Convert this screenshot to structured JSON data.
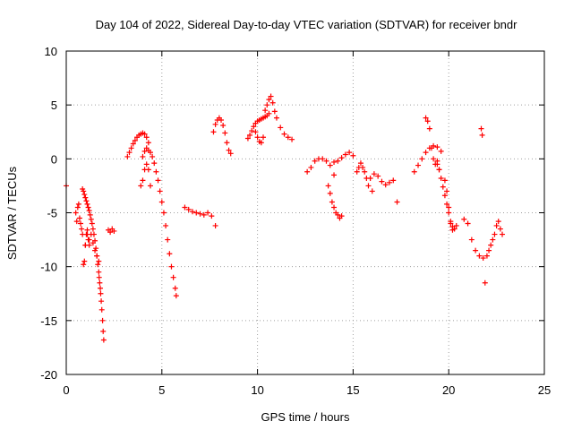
{
  "chart_data": {
    "type": "scatter",
    "title": "Day 104 of 2022, Sidereal Day-to-day VTEC variation (SDTVAR) for receiver bndr",
    "xlabel": "GPS time / hours",
    "ylabel": "SDTVAR / TECUs",
    "xlim": [
      0,
      25
    ],
    "ylim": [
      -20,
      10
    ],
    "xticks": [
      0,
      5,
      10,
      15,
      20,
      25
    ],
    "yticks": [
      10,
      5,
      0,
      -5,
      -10,
      -15,
      -20
    ],
    "xtick_labels": [
      "0",
      "5",
      "10",
      "15",
      "20",
      "25"
    ],
    "ytick_labels": [
      "10",
      "5",
      "0",
      "-5",
      "-10",
      "-15",
      "-20"
    ],
    "grid": true,
    "marker": "plus",
    "color": "#ff0000",
    "series": [
      {
        "name": "SDTVAR",
        "x": [
          0.0,
          0.5,
          0.55,
          0.6,
          0.65,
          0.7,
          0.75,
          0.8,
          0.85,
          0.9,
          0.95,
          1.0,
          1.05,
          1.1,
          1.15,
          1.2,
          0.85,
          0.9,
          0.95,
          1.0,
          1.05,
          1.1,
          1.15,
          1.2,
          1.25,
          1.3,
          1.35,
          1.4,
          1.45,
          1.5,
          1.55,
          1.6,
          1.65,
          1.7,
          1.72,
          1.75,
          1.78,
          1.8,
          1.83,
          1.86,
          1.9,
          1.93,
          1.96,
          1.0,
          1.1,
          1.2,
          1.3,
          1.4,
          1.5,
          1.6,
          1.7,
          2.2,
          2.3,
          2.4,
          2.5,
          3.2,
          3.3,
          3.4,
          3.5,
          3.6,
          3.7,
          3.8,
          3.9,
          4.0,
          4.1,
          4.2,
          4.3,
          3.9,
          4.0,
          4.1,
          4.2,
          4.3,
          4.4,
          4.5,
          4.6,
          4.7,
          4.8,
          4.9,
          5.0,
          5.1,
          5.2,
          5.3,
          5.4,
          5.5,
          5.6,
          5.7,
          5.75,
          4.0,
          4.1,
          4.2,
          4.3,
          4.4,
          6.2,
          6.4,
          6.6,
          6.8,
          7.0,
          7.2,
          7.4,
          7.6,
          7.8,
          7.7,
          7.8,
          7.9,
          8.0,
          8.1,
          8.2,
          8.3,
          8.4,
          8.5,
          8.6,
          9.5,
          9.6,
          9.7,
          9.8,
          9.9,
          10.0,
          10.1,
          10.2,
          10.3,
          10.4,
          10.5,
          10.6,
          10.4,
          10.5,
          10.6,
          10.7,
          10.8,
          10.9,
          11.0,
          11.2,
          11.4,
          11.6,
          11.8,
          9.9,
          10.0,
          10.1,
          10.2,
          10.3,
          12.6,
          12.8,
          13.0,
          13.2,
          13.4,
          13.6,
          13.8,
          14.0,
          13.7,
          13.8,
          13.9,
          14.0,
          14.1,
          14.2,
          14.3,
          14.4,
          14.0,
          14.2,
          14.4,
          14.6,
          14.8,
          15.0,
          15.2,
          15.3,
          15.4,
          15.5,
          15.6,
          15.7,
          15.8,
          16.0,
          15.9,
          16.1,
          16.3,
          16.5,
          16.7,
          16.9,
          17.1,
          17.3,
          18.2,
          18.4,
          18.6,
          18.8,
          19.0,
          19.2,
          19.4,
          19.6,
          18.8,
          18.9,
          19.0,
          19.1,
          19.2,
          19.3,
          19.4,
          19.5,
          19.4,
          19.5,
          19.6,
          19.7,
          19.8,
          19.9,
          20.0,
          20.1,
          20.2,
          20.3,
          20.4,
          19.8,
          19.9,
          20.0,
          20.1,
          20.2,
          20.8,
          21.0,
          21.2,
          21.4,
          21.6,
          21.8,
          21.7,
          21.75,
          21.9,
          22.0,
          22.1,
          22.2,
          22.3,
          22.4,
          22.5,
          22.6,
          22.7,
          22.8
        ],
        "y": [
          -2.5,
          -5.0,
          -5.8,
          -4.5,
          -4.2,
          -5.5,
          -6.0,
          -6.5,
          -7.0,
          -9.8,
          -9.5,
          -8.0,
          -7.0,
          -6.6,
          -7.5,
          -8.0,
          -2.8,
          -3.0,
          -3.3,
          -3.6,
          -3.9,
          -4.2,
          -4.5,
          -4.8,
          -5.2,
          -5.6,
          -6.0,
          -6.5,
          -7.0,
          -7.6,
          -8.3,
          -9.0,
          -9.8,
          -10.5,
          -11.0,
          -11.5,
          -12.0,
          -12.5,
          -13.2,
          -14.0,
          -15.0,
          -16.0,
          -16.8,
          -8.0,
          -7.0,
          -7.5,
          -7.0,
          -7.8,
          -8.5,
          -9.0,
          -9.5,
          -6.6,
          -6.8,
          -6.5,
          -6.7,
          0.2,
          0.6,
          1.0,
          1.4,
          1.7,
          2.0,
          2.2,
          2.3,
          2.4,
          2.3,
          2.0,
          1.5,
          -2.5,
          0.2,
          0.7,
          1.0,
          0.8,
          0.6,
          0.2,
          -0.4,
          -1.2,
          -2.0,
          -3.0,
          -4.0,
          -5.0,
          -6.2,
          -7.5,
          -8.8,
          -10.0,
          -11.0,
          -12.0,
          -12.7,
          -2.0,
          -1.0,
          -0.5,
          -1.0,
          -2.5,
          -4.5,
          -4.7,
          -4.9,
          -5.0,
          -5.1,
          -5.2,
          -5.0,
          -5.3,
          -6.2,
          2.5,
          3.2,
          3.6,
          3.8,
          3.6,
          3.1,
          2.4,
          1.5,
          0.8,
          0.5,
          1.9,
          2.2,
          2.6,
          3.0,
          3.3,
          3.5,
          3.6,
          3.7,
          3.8,
          3.9,
          4.0,
          4.2,
          4.5,
          5.0,
          5.5,
          5.8,
          5.2,
          4.4,
          3.8,
          2.9,
          2.3,
          2.0,
          1.8,
          2.5,
          2.0,
          1.6,
          1.5,
          2.0,
          -1.2,
          -0.8,
          -0.2,
          0.0,
          0.0,
          -0.2,
          -0.6,
          -1.5,
          -2.5,
          -3.2,
          -4.0,
          -4.5,
          -5.0,
          -5.2,
          -5.5,
          -5.3,
          -0.3,
          -0.2,
          0.1,
          0.4,
          0.6,
          0.3,
          -1.2,
          -0.8,
          -0.4,
          -0.8,
          -1.2,
          -1.8,
          -2.5,
          -3.0,
          -1.8,
          -1.4,
          -1.6,
          -2.1,
          -2.4,
          -2.2,
          -2.0,
          -4.0,
          -1.2,
          -0.6,
          0.0,
          0.6,
          1.0,
          1.2,
          1.1,
          0.7,
          3.8,
          3.5,
          2.8,
          1.0,
          0.0,
          -0.5,
          -0.2,
          -1.0,
          -0.5,
          -1.0,
          -1.8,
          -2.6,
          -3.4,
          -4.2,
          -5.0,
          -5.8,
          -6.3,
          -6.5,
          -6.2,
          -2.0,
          -3.0,
          -4.5,
          -6.0,
          -6.6,
          -5.6,
          -6.0,
          -7.5,
          -8.5,
          -9.0,
          -9.2,
          2.8,
          2.2,
          -11.5,
          -9.0,
          -8.5,
          -8.0,
          -7.5,
          -7.0,
          -6.2,
          -5.8,
          -6.5,
          -7.0
        ]
      }
    ]
  }
}
